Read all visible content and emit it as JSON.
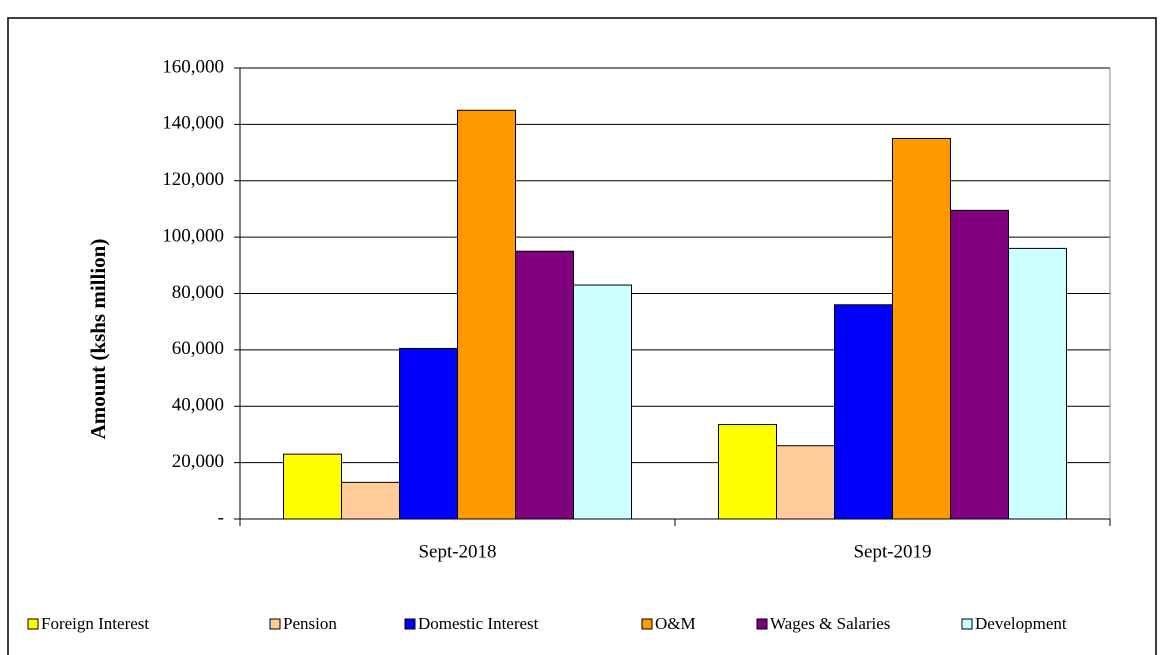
{
  "chart_data": {
    "type": "bar",
    "y_label": "Amount  (kshs million)",
    "categories": [
      "Sept-2018",
      "Sept-2019"
    ],
    "series": [
      {
        "name": "Foreign Interest",
        "color": "#ffff00",
        "values": [
          23000,
          33500
        ]
      },
      {
        "name": "Pension",
        "color": "#ffcc99",
        "values": [
          13000,
          26000
        ]
      },
      {
        "name": "Domestic Interest",
        "color": "#0000ff",
        "values": [
          60500,
          76000
        ]
      },
      {
        "name": "O&M",
        "color": "#ff9900",
        "values": [
          145000,
          135000
        ]
      },
      {
        "name": "Wages & Salaries",
        "color": "#800080",
        "values": [
          95000,
          109500
        ]
      },
      {
        "name": "Development",
        "color": "#ccffff",
        "values": [
          83000,
          96000
        ]
      }
    ],
    "ylim": [
      0,
      160000
    ],
    "yticks": [
      {
        "value": 0,
        "label": "-"
      },
      {
        "value": 20000,
        "label": "20,000"
      },
      {
        "value": 40000,
        "label": "40,000"
      },
      {
        "value": 60000,
        "label": "60,000"
      },
      {
        "value": 80000,
        "label": "80,000"
      },
      {
        "value": 100000,
        "label": "100,000"
      },
      {
        "value": 120000,
        "label": "120,000"
      },
      {
        "value": 140000,
        "label": "140,000"
      },
      {
        "value": 160000,
        "label": "160,000"
      }
    ],
    "grid": true
  }
}
